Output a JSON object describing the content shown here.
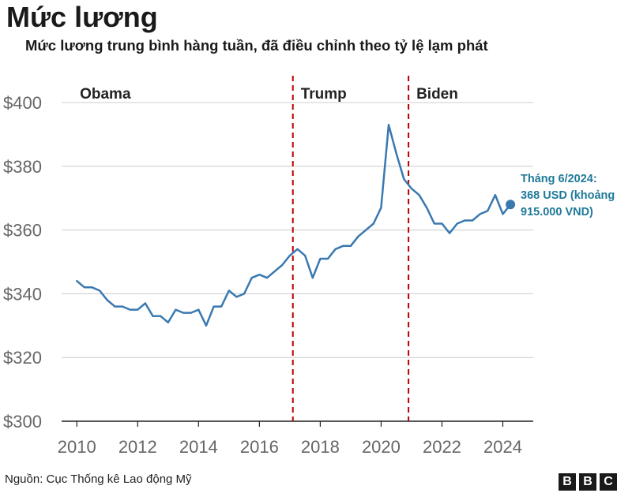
{
  "header": {
    "title": "Mức lương",
    "subtitle": "Mức lương trung bình hàng tuần, đã điều chỉnh theo tỷ lệ lạm phát"
  },
  "footer": {
    "source": "Nguồn: Cục Thống kê Lao động Mỹ",
    "logo_letters": [
      "B",
      "B",
      "C"
    ]
  },
  "colors": {
    "line": "#3a78b0",
    "marker": "#3a78b0",
    "annotation": "#1f7a99",
    "divider": "#b80000",
    "grid": "#cccccc",
    "axis": "#222222",
    "tick_label": "#666666"
  },
  "chart_data": {
    "type": "line",
    "title": "Mức lương",
    "subtitle": "Mức lương trung bình hàng tuần, đã điều chỉnh theo tỷ lệ lạm phát",
    "xlabel": "",
    "ylabel": "",
    "xlim": [
      2009.5,
      2025
    ],
    "ylim": [
      300,
      400
    ],
    "x_ticks": [
      2010,
      2012,
      2014,
      2016,
      2018,
      2020,
      2022,
      2024
    ],
    "y_ticks": [
      300,
      320,
      340,
      360,
      380,
      400
    ],
    "y_tick_labels": [
      "$300",
      "$320",
      "$340",
      "$360",
      "$380",
      "$400"
    ],
    "grid": true,
    "series": [
      {
        "x": [
          2010.0,
          2010.25,
          2010.5,
          2010.75,
          2011.0,
          2011.25,
          2011.5,
          2011.75,
          2012.0,
          2012.25,
          2012.5,
          2012.75,
          2013.0,
          2013.25,
          2013.5,
          2013.75,
          2014.0,
          2014.25,
          2014.5,
          2014.75,
          2015.0,
          2015.25,
          2015.5,
          2015.75,
          2016.0,
          2016.25,
          2016.5,
          2016.75,
          2017.0,
          2017.25,
          2017.5,
          2017.75,
          2018.0,
          2018.25,
          2018.5,
          2018.75,
          2019.0,
          2019.25,
          2019.5,
          2019.75,
          2020.0,
          2020.25,
          2020.5,
          2020.75,
          2021.0,
          2021.25,
          2021.5,
          2021.75,
          2022.0,
          2022.25,
          2022.5,
          2022.75,
          2023.0,
          2023.25,
          2023.5,
          2023.75,
          2024.0,
          2024.25
        ],
        "values": [
          344,
          342,
          342,
          341,
          338,
          336,
          336,
          335,
          335,
          337,
          333,
          333,
          331,
          335,
          334,
          334,
          335,
          330,
          336,
          336,
          341,
          339,
          340,
          345,
          346,
          345,
          347,
          349,
          352,
          354,
          352,
          345,
          351,
          351,
          354,
          355,
          355,
          358,
          360,
          362,
          367,
          393,
          384,
          376,
          373,
          371,
          367,
          362,
          362,
          359,
          362,
          363,
          363,
          365,
          366,
          371,
          365,
          368
        ]
      }
    ],
    "dividers": [
      {
        "x": 2017.1,
        "label": "Trump"
      },
      {
        "x": 2020.9,
        "label": "Biden"
      }
    ],
    "era_labels": [
      {
        "x": 2010.1,
        "label": "Obama"
      }
    ],
    "marker": {
      "x": 2024.25,
      "y": 368
    },
    "annotation_lines": [
      "Tháng 6/2024:",
      "368 USD (khoảng",
      "915.000 VND)"
    ]
  }
}
